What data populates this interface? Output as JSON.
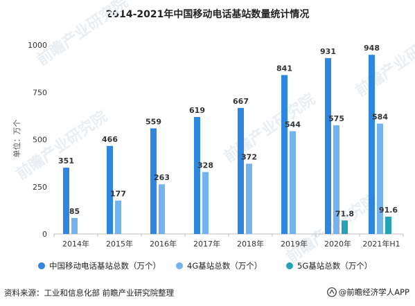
{
  "title": "2014-2021年中国移动电话基站数量统计情况",
  "source": "资料来源：工业和信息化部 前瞻产业研究院整理",
  "brand": "@前瞻经济学人APP",
  "watermark": "前瞻产业研究院",
  "colors": {
    "series0": "#2e86de",
    "series1": "#74b3ee",
    "series2": "#26a2b8",
    "axis": "#bfbfbf",
    "text": "#333333"
  },
  "chart_data": {
    "type": "bar",
    "title": "2014-2021年中国移动电话基站数量统计情况",
    "ylabel": "单位：万个",
    "ylim": [
      0,
      1000
    ],
    "yticks": [
      0,
      250,
      500,
      750,
      1000
    ],
    "grid": false,
    "legend_position": "bottom",
    "categories": [
      "2014年",
      "2015年",
      "2016年",
      "2017年",
      "2018年",
      "2019年",
      "2020年",
      "2021年H1"
    ],
    "series": [
      {
        "name": "中国移动电话基站总数（万个）",
        "values": [
          351,
          466,
          559,
          619,
          667,
          841,
          931,
          948
        ],
        "labels": [
          "351",
          "466",
          "559",
          "619",
          "667",
          "841",
          "931",
          "948"
        ]
      },
      {
        "name": "4G基站总数（万个）",
        "values": [
          85,
          177,
          263,
          328,
          372,
          544,
          575,
          584
        ],
        "labels": [
          "85",
          "177",
          "263",
          "328",
          "372",
          "544",
          "575",
          "584"
        ]
      },
      {
        "name": "5G基站总数（万个）",
        "values": [
          null,
          null,
          null,
          null,
          null,
          null,
          71.8,
          91.6
        ],
        "labels": [
          "",
          "",
          "",
          "",
          "",
          "",
          "71.8",
          "91.6"
        ]
      }
    ]
  }
}
